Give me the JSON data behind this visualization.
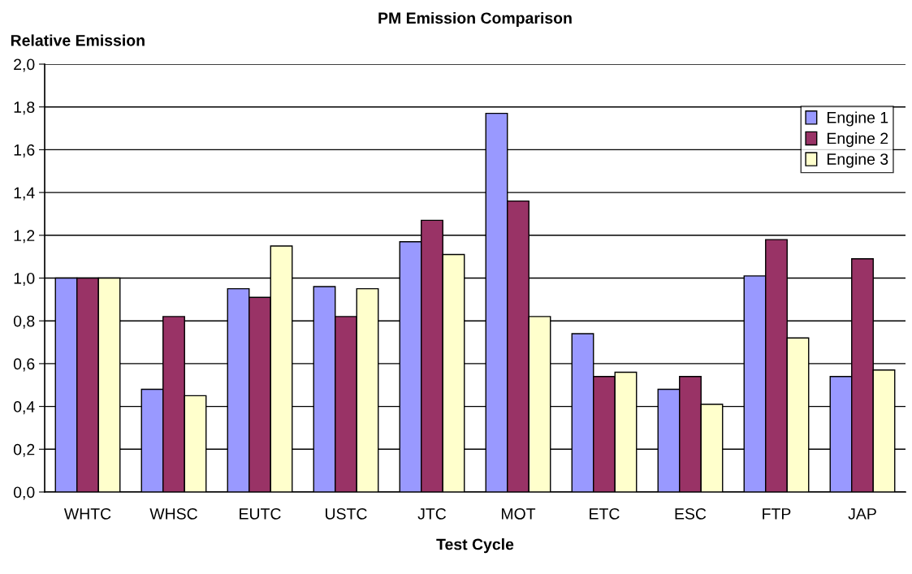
{
  "chart_data": {
    "type": "bar",
    "title": "PM Emission Comparison",
    "xlabel": "Test Cycle",
    "ylabel": "Relative Emission",
    "categories": [
      "WHTC",
      "WHSC",
      "EUTC",
      "USTC",
      "JTC",
      "MOT",
      "ETC",
      "ESC",
      "FTP",
      "JAP"
    ],
    "series": [
      {
        "name": "Engine 1",
        "color": "#9999ff",
        "values": [
          1.0,
          0.48,
          0.95,
          0.96,
          1.17,
          1.77,
          0.74,
          0.48,
          1.01,
          0.54
        ]
      },
      {
        "name": "Engine 2",
        "color": "#993366",
        "values": [
          1.0,
          0.82,
          0.91,
          0.82,
          1.27,
          1.36,
          0.54,
          0.54,
          1.18,
          1.09
        ]
      },
      {
        "name": "Engine 3",
        "color": "#ffffcc",
        "values": [
          1.0,
          0.45,
          1.15,
          0.95,
          1.11,
          0.82,
          0.56,
          0.41,
          0.72,
          0.57
        ]
      }
    ],
    "ylim": [
      0,
      2.0
    ],
    "yticks": [
      {
        "value": 0,
        "label": "0,0"
      },
      {
        "value": 0.2,
        "label": "0,2"
      },
      {
        "value": 0.4,
        "label": "0,4"
      },
      {
        "value": 0.6,
        "label": "0,6"
      },
      {
        "value": 0.8,
        "label": "0,8"
      },
      {
        "value": 1.0,
        "label": "1,0"
      },
      {
        "value": 1.2,
        "label": "1,2"
      },
      {
        "value": 1.4,
        "label": "1,4"
      },
      {
        "value": 1.6,
        "label": "1,6"
      },
      {
        "value": 1.8,
        "label": "1,8"
      },
      {
        "value": 2.0,
        "label": "2,0"
      }
    ],
    "grid": "y",
    "legend": "top right"
  }
}
